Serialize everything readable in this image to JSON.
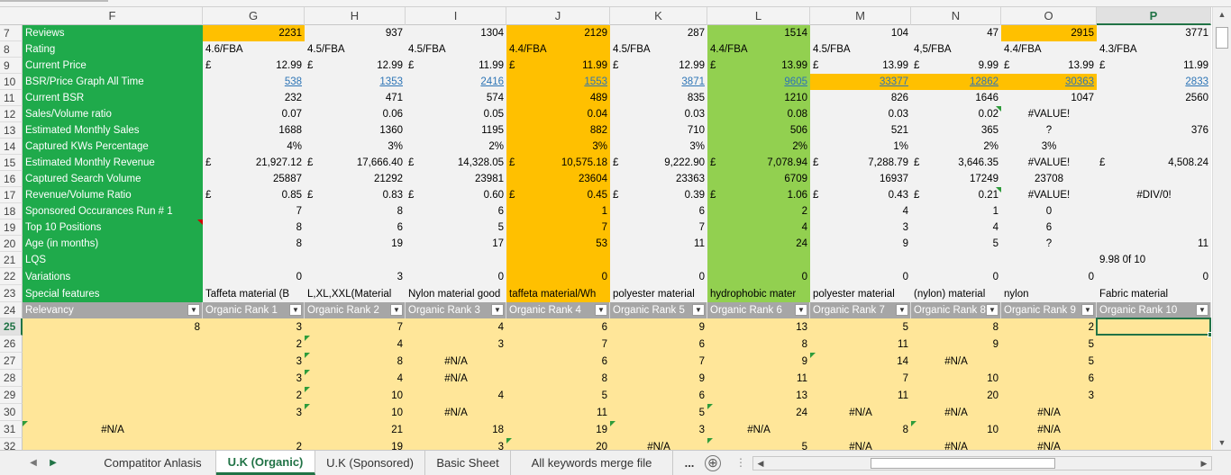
{
  "columns": [
    "F",
    "G",
    "H",
    "I",
    "J",
    "K",
    "L",
    "M",
    "N",
    "O",
    "P"
  ],
  "active_column": "P",
  "rows": [
    "7",
    "8",
    "9",
    "10",
    "11",
    "12",
    "13",
    "14",
    "15",
    "16",
    "17",
    "18",
    "19",
    "20",
    "21",
    "22",
    "23",
    "24",
    "25",
    "26",
    "27",
    "28",
    "29",
    "30",
    "31",
    "32"
  ],
  "active_row": "25",
  "currency_symbol": "£",
  "labels": {
    "r7": "Reviews",
    "r8": "Rating",
    "r9": "Current Price",
    "r10": "BSR/Price Graph All Time",
    "r11": "Current BSR",
    "r12": "Sales/Volume ratio",
    "r13": "Estimated Monthly Sales",
    "r14": "Captured KWs Percentage",
    "r15": "Estimated Monthly Revenue",
    "r16": "Captured Search Volume",
    "r17": "Revenue/Volume Ratio",
    "r18": "Sponsored Occurances Run # 1",
    "r19": "Top 10 Positions",
    "r20": "Age (in months)",
    "r21": "LQS",
    "r22": "Variations",
    "r23": "Special features",
    "r24": "Relevancy"
  },
  "data": {
    "reviews": [
      "2231",
      "937",
      "1304",
      "2129",
      "287",
      "1514",
      "104",
      "47",
      "2915",
      "3771"
    ],
    "rating": [
      "4.6/FBA",
      "4.5/FBA",
      "4.5/FBA",
      "4.4/FBA",
      "4.5/FBA",
      "4.4/FBA",
      "4.5/FBA",
      "4,5/FBA",
      "4.4/FBA",
      "4.3/FBA"
    ],
    "price": [
      "12.99",
      "12.99",
      "11.99",
      "11.99",
      "12.99",
      "13.99",
      "13.99",
      "9.99",
      "13.99",
      "11.99"
    ],
    "bsr_graph": [
      "538",
      "1353",
      "2416",
      "1553",
      "3871",
      "9605",
      "33377",
      "12862",
      "30363",
      "2833"
    ],
    "current_bsr": [
      "232",
      "471",
      "574",
      "489",
      "835",
      "1210",
      "826",
      "1646",
      "1047",
      "2560"
    ],
    "sales_volume_ratio": [
      "0.07",
      "0.06",
      "0.05",
      "0.04",
      "0.03",
      "0.08",
      "0.03",
      "0.02",
      "#VALUE!",
      ""
    ],
    "monthly_sales": [
      "1688",
      "1360",
      "1195",
      "882",
      "710",
      "506",
      "521",
      "365",
      "?",
      "376"
    ],
    "kw_percentage": [
      "4%",
      "3%",
      "2%",
      "3%",
      "3%",
      "2%",
      "1%",
      "2%",
      "3%",
      ""
    ],
    "monthly_revenue": [
      "21,927.12",
      "17,666.40",
      "14,328.05",
      "10,575.18",
      "9,222.90",
      "7,078.94",
      "7,288.79",
      "3,646.35",
      "#VALUE!",
      "4,508.24"
    ],
    "search_volume": [
      "25887",
      "21292",
      "23981",
      "23604",
      "23363",
      "6709",
      "16937",
      "17249",
      "23708",
      ""
    ],
    "revenue_volume": [
      "0.85",
      "0.83",
      "0.60",
      "0.45",
      "0.39",
      "1.06",
      "0.43",
      "0.21",
      "#VALUE!",
      "#DIV/0!"
    ],
    "sponsored": [
      "7",
      "8",
      "6",
      "1",
      "6",
      "2",
      "4",
      "1",
      "0",
      ""
    ],
    "top10": [
      "8",
      "6",
      "5",
      "7",
      "7",
      "4",
      "3",
      "4",
      "6",
      ""
    ],
    "age": [
      "8",
      "19",
      "17",
      "53",
      "11",
      "24",
      "9",
      "5",
      "?",
      "11"
    ],
    "lqs": [
      "",
      "",
      "",
      "",
      "",
      "",
      "",
      "",
      "",
      "9.98 0f 10"
    ],
    "variations": [
      "0",
      "3",
      "0",
      "0",
      "0",
      "0",
      "0",
      "0",
      "0",
      "0"
    ],
    "special": [
      "Taffeta material (B",
      "L,XL,XXL(Material",
      "Nylon material good",
      "taffeta material/Wh",
      "polyester material",
      "hydrophobic mater",
      "polyester material",
      "(nylon) material",
      "nylon",
      "Fabric material"
    ]
  },
  "rank_header": {
    "relevancy": "Relevancy",
    "ranks": [
      "Organic Rank 1",
      "Organic Rank 2",
      "Organic Rank 3",
      "Organic Rank 4",
      "Organic Rank 5",
      "Organic Rank 6",
      "Organic Rank 7",
      "Organic Rank 8",
      "Organic Rank 9",
      "Organic Rank 10"
    ],
    "dropdown": "▼"
  },
  "rank_rows": [
    [
      "8",
      "3",
      "7",
      "4",
      "6",
      "9",
      "13",
      "5",
      "8",
      "2",
      ""
    ],
    [
      "",
      "2",
      "4",
      "3",
      "7",
      "6",
      "8",
      "11",
      "9",
      "5",
      ""
    ],
    [
      "",
      "3",
      "8",
      "#N/A",
      "6",
      "7",
      "9",
      "14",
      "#N/A",
      "5",
      ""
    ],
    [
      "",
      "3",
      "4",
      "#N/A",
      "8",
      "9",
      "11",
      "7",
      "10",
      "6",
      ""
    ],
    [
      "",
      "2",
      "10",
      "4",
      "5",
      "6",
      "13",
      "11",
      "20",
      "3",
      ""
    ],
    [
      "",
      "3",
      "10",
      "#N/A",
      "11",
      "5",
      "24",
      "#N/A",
      "#N/A",
      "#N/A",
      ""
    ],
    [
      "#N/A",
      "",
      "21",
      "18",
      "19",
      "3",
      "#N/A",
      "8",
      "10",
      "#N/A",
      ""
    ],
    [
      "",
      "2",
      "19",
      "3",
      "20",
      "#N/A",
      "5",
      "#N/A",
      "#N/A",
      "#N/A",
      ""
    ]
  ],
  "sheet_tabs": [
    "Compatitor Anlasis",
    "U.K (Organic)",
    "U.K (Sponsored)",
    "Basic Sheet",
    "All keywords merge file"
  ],
  "active_tab": "U.K (Organic)",
  "tab_overflow": "...",
  "add_sheet_icon": "⊕",
  "colors": {
    "green_block": "#1faa4b",
    "orange_highlight": "#ffc000",
    "light_green_highlight": "#92d050",
    "rank_table_fill": "#ffe699",
    "excel_green": "#217346"
  }
}
